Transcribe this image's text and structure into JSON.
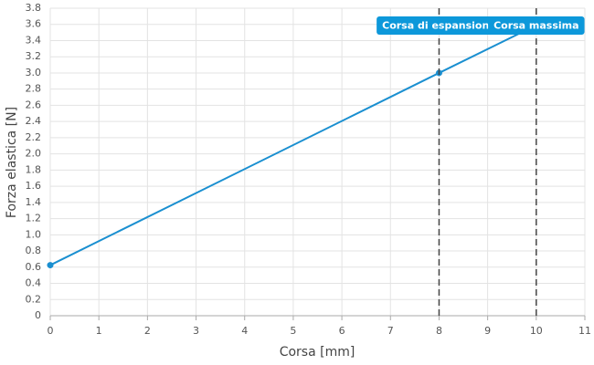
{
  "chart_data": {
    "type": "line",
    "x_label": "Corsa [mm]",
    "y_label": "Forza elastica [N]",
    "x": [
      0,
      8,
      10
    ],
    "series": [
      {
        "name": "Forza elastica",
        "color": "#1a8fd0",
        "values": [
          0.625,
          3.0,
          3.59
        ]
      }
    ],
    "xlim": [
      0,
      11
    ],
    "xticks": [
      0,
      1,
      2,
      3,
      4,
      5,
      6,
      7,
      8,
      9,
      10,
      11
    ],
    "ylim": [
      0,
      3.8
    ],
    "yticks": [
      0,
      0.2,
      0.4,
      0.6,
      0.8,
      {
        "value": 1,
        "label": "1.0"
      },
      1.2,
      1.4,
      1.6,
      1.8,
      {
        "value": 2,
        "label": "2.0"
      },
      2.2,
      2.4,
      2.6,
      2.8,
      {
        "value": 3,
        "label": "3.0"
      },
      3.2,
      3.4,
      3.6,
      3.8
    ],
    "grid": true,
    "annotations": [
      {
        "x": 8,
        "label": "Corsa di espansione"
      },
      {
        "x": 10,
        "label": "Corsa massima"
      }
    ]
  }
}
